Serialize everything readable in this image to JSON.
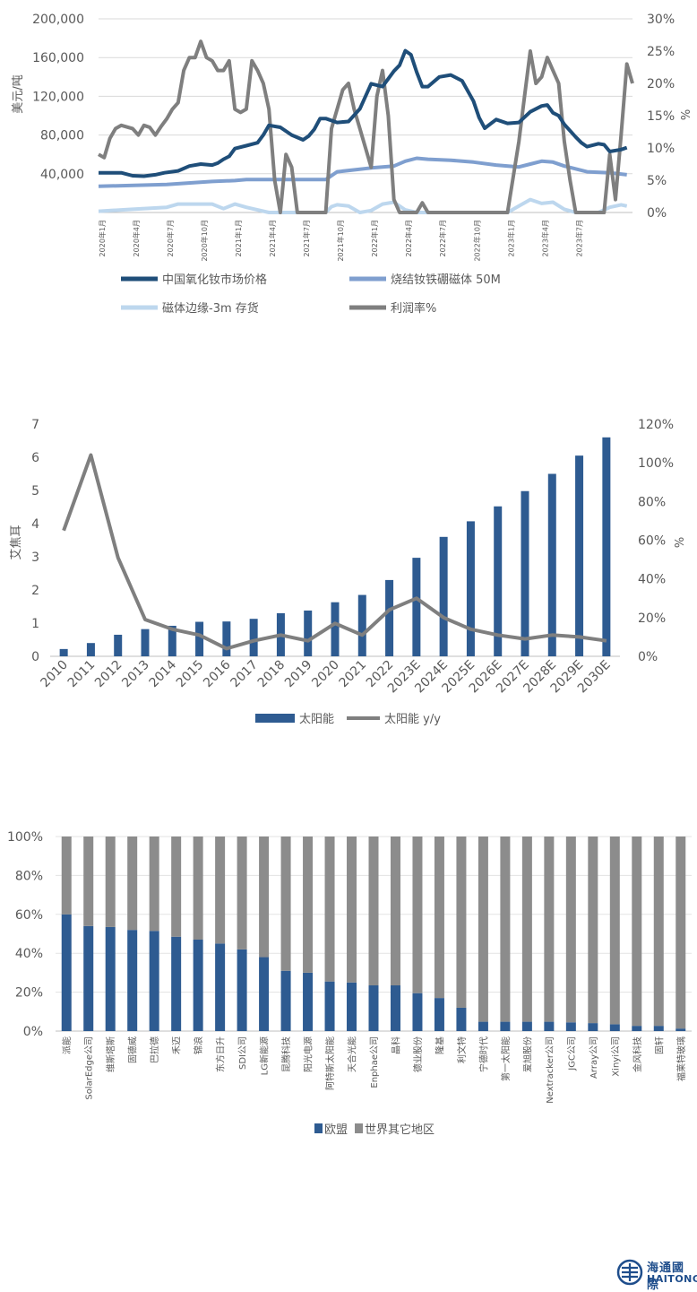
{
  "chart_data": [
    {
      "type": "line",
      "title": "",
      "ylabel": "美元/吨",
      "y2label": "%",
      "ylim": [
        0,
        200000
      ],
      "y2lim": [
        0,
        30
      ],
      "yticks": [
        "40,000",
        "80,000",
        "120,000",
        "160,000",
        "200,000"
      ],
      "y2ticks": [
        "0%",
        "5%",
        "10%",
        "15%",
        "20%",
        "25%",
        "30%"
      ],
      "xticks": [
        "2020年1月",
        "2020年4月",
        "2020年7月",
        "2020年10月",
        "2021年1月",
        "2021年4月",
        "2021年7月",
        "2021年10月",
        "2022年1月",
        "2022年4月",
        "2022年7月",
        "2022年10月",
        "2023年1月",
        "2023年4月",
        "2023年7月"
      ],
      "legend_position": "bottom",
      "colors": {
        "ndox": "#1f4e79",
        "magnet": "#7f9fcf",
        "edge": "#bdd7ee",
        "margin": "#7f7f7f"
      },
      "series": [
        {
          "name": "中国氧化钕市场价格",
          "axis": "left",
          "values": [
            [
              0,
              41000
            ],
            [
              2,
              41000
            ],
            [
              3,
              38000
            ],
            [
              4,
              37500
            ],
            [
              5,
              39000
            ],
            [
              5.8,
              41000
            ],
            [
              7,
              43000
            ],
            [
              8,
              48000
            ],
            [
              9,
              50000
            ],
            [
              10,
              49000
            ],
            [
              10.5,
              51000
            ],
            [
              11,
              55000
            ],
            [
              11.5,
              58000
            ],
            [
              12,
              66000
            ],
            [
              13,
              69000
            ],
            [
              14,
              72000
            ],
            [
              14.5,
              80000
            ],
            [
              15,
              90000
            ],
            [
              16,
              88000
            ],
            [
              17,
              80000
            ],
            [
              18,
              75000
            ],
            [
              18.5,
              79000
            ],
            [
              19,
              86000
            ],
            [
              19.5,
              97000
            ],
            [
              20,
              97000
            ],
            [
              21,
              93000
            ],
            [
              22,
              94000
            ],
            [
              23,
              107000
            ],
            [
              23.5,
              120000
            ],
            [
              24,
              133000
            ],
            [
              25,
              130000
            ],
            [
              26,
              146000
            ],
            [
              26.5,
              152000
            ],
            [
              27,
              167000
            ],
            [
              27.5,
              163000
            ],
            [
              28,
              145000
            ],
            [
              28.5,
              130000
            ],
            [
              29,
              130000
            ],
            [
              30,
              140000
            ],
            [
              31,
              142000
            ],
            [
              32,
              136000
            ],
            [
              33,
              115000
            ],
            [
              33.5,
              98000
            ],
            [
              34,
              87000
            ],
            [
              35,
              96000
            ],
            [
              36,
              92000
            ],
            [
              37,
              93000
            ],
            [
              38,
              104000
            ],
            [
              39,
              110000
            ],
            [
              39.5,
              111000
            ],
            [
              40,
              103000
            ],
            [
              40.5,
              100000
            ],
            [
              41,
              91000
            ],
            [
              42,
              78000
            ],
            [
              42.5,
              72000
            ],
            [
              43,
              68000
            ],
            [
              44,
              71000
            ],
            [
              44.5,
              70000
            ],
            [
              45,
              63000
            ],
            [
              46,
              65000
            ],
            [
              46.5,
              67000
            ]
          ]
        },
        {
          "name": "烧结钕铁硼磁体 50M",
          "axis": "left",
          "values": [
            [
              0,
              27000
            ],
            [
              6,
              29000
            ],
            [
              10,
              32000
            ],
            [
              12,
              33000
            ],
            [
              13,
              34000
            ],
            [
              20,
              34000
            ],
            [
              21,
              42000
            ],
            [
              24,
              46000
            ],
            [
              26,
              48000
            ],
            [
              27,
              53000
            ],
            [
              28,
              56000
            ],
            [
              29,
              55000
            ],
            [
              31,
              54000
            ],
            [
              33,
              52000
            ],
            [
              35,
              49000
            ],
            [
              37,
              47000
            ],
            [
              38,
              50000
            ],
            [
              39,
              53000
            ],
            [
              40,
              52000
            ],
            [
              41,
              48000
            ],
            [
              43,
              42000
            ],
            [
              45,
              41000
            ],
            [
              46.5,
              39000
            ]
          ]
        },
        {
          "name": "磁体边缘-3m 存货",
          "axis": "right",
          "values": [
            [
              0,
              0.2
            ],
            [
              3,
              0.5
            ],
            [
              6,
              0.8
            ],
            [
              7,
              1.3
            ],
            [
              10,
              1.3
            ],
            [
              11,
              0.6
            ],
            [
              12,
              1.3
            ],
            [
              13,
              0.8
            ],
            [
              14,
              0.4
            ],
            [
              15,
              0
            ],
            [
              20,
              0
            ],
            [
              20.5,
              0.9
            ],
            [
              21,
              1.2
            ],
            [
              22,
              1.0
            ],
            [
              23,
              0
            ],
            [
              24,
              0.3
            ],
            [
              25,
              1.3
            ],
            [
              26,
              1.6
            ],
            [
              27,
              0.4
            ],
            [
              28,
              0
            ],
            [
              30,
              0
            ],
            [
              36,
              0
            ],
            [
              37,
              1.0
            ],
            [
              38,
              2.0
            ],
            [
              39,
              1.4
            ],
            [
              40,
              1.6
            ],
            [
              41,
              0.5
            ],
            [
              42,
              0
            ],
            [
              44,
              0
            ],
            [
              45,
              0.8
            ],
            [
              46,
              1.2
            ],
            [
              46.5,
              1.0
            ]
          ]
        },
        {
          "name": "利润率%",
          "axis": "right",
          "values": [
            [
              0,
              9.0
            ],
            [
              0.5,
              8.5
            ],
            [
              1,
              11.5
            ],
            [
              1.5,
              13
            ],
            [
              2,
              13.5
            ],
            [
              3,
              13
            ],
            [
              3.5,
              12
            ],
            [
              4,
              13.5
            ],
            [
              4.5,
              13.2
            ],
            [
              5,
              12
            ],
            [
              5.5,
              13.3
            ],
            [
              6,
              14.5
            ],
            [
              6.5,
              16
            ],
            [
              7,
              17
            ],
            [
              7.5,
              22
            ],
            [
              8,
              24
            ],
            [
              8.5,
              24
            ],
            [
              9,
              26.5
            ],
            [
              9.5,
              24
            ],
            [
              10,
              23.5
            ],
            [
              10.5,
              22
            ],
            [
              11,
              22
            ],
            [
              11.5,
              23.5
            ],
            [
              12,
              16
            ],
            [
              12.5,
              15.5
            ],
            [
              13,
              16
            ],
            [
              13.5,
              23.5
            ],
            [
              14,
              22
            ],
            [
              14.5,
              20
            ],
            [
              15,
              16
            ],
            [
              15.5,
              5
            ],
            [
              16,
              0
            ],
            [
              16.5,
              9
            ],
            [
              17,
              7
            ],
            [
              17.5,
              0
            ],
            [
              20,
              0
            ],
            [
              20.5,
              13
            ],
            [
              21,
              16
            ],
            [
              21.5,
              19
            ],
            [
              22,
              20
            ],
            [
              22.5,
              16
            ],
            [
              23,
              13
            ],
            [
              24,
              7
            ],
            [
              24.5,
              18
            ],
            [
              25,
              22
            ],
            [
              25.5,
              15
            ],
            [
              26,
              2
            ],
            [
              26.5,
              0
            ],
            [
              28,
              0
            ],
            [
              28.5,
              1.5
            ],
            [
              29,
              0
            ],
            [
              36,
              0
            ],
            [
              37,
              11
            ],
            [
              37.5,
              18
            ],
            [
              38,
              25
            ],
            [
              38.5,
              20
            ],
            [
              39,
              21
            ],
            [
              39.5,
              24
            ],
            [
              40,
              22
            ],
            [
              40.5,
              20
            ],
            [
              41,
              11
            ],
            [
              41.5,
              5
            ],
            [
              42,
              0
            ],
            [
              44,
              0
            ],
            [
              44.5,
              0
            ],
            [
              45,
              9
            ],
            [
              45.5,
              2
            ],
            [
              46,
              12
            ],
            [
              46.5,
              23
            ],
            [
              47,
              20
            ]
          ]
        }
      ]
    },
    {
      "type": "bar",
      "title": "",
      "ylabel": "艾焦耳",
      "y2label": "%",
      "ylim": [
        0,
        7
      ],
      "y2lim": [
        0,
        120
      ],
      "yticks": [
        "0",
        "1",
        "2",
        "3",
        "4",
        "5",
        "6",
        "7"
      ],
      "y2ticks": [
        "0%",
        "20%",
        "40%",
        "60%",
        "80%",
        "100%",
        "120%"
      ],
      "categories": [
        "2010",
        "2011",
        "2012",
        "2013",
        "2014",
        "2015",
        "2016",
        "2017",
        "2018",
        "2019",
        "2020",
        "2021",
        "2022",
        "2023E",
        "2024E",
        "2025E",
        "2026E",
        "2027E",
        "2028E",
        "2029E",
        "2030E"
      ],
      "legend_position": "bottom",
      "colors": {
        "bar": "#2e5b91",
        "line": "#7f7f7f"
      },
      "series": [
        {
          "name": "太阳能",
          "axis": "left",
          "values": [
            0.22,
            0.4,
            0.65,
            0.82,
            0.92,
            1.04,
            1.05,
            1.13,
            1.3,
            1.38,
            1.63,
            1.85,
            2.3,
            2.97,
            3.6,
            4.07,
            4.52,
            4.98,
            5.5,
            6.05,
            6.6
          ]
        },
        {
          "name": "太阳能 y/y",
          "axis": "right",
          "values": [
            65,
            104,
            51,
            19,
            14,
            11,
            4,
            8,
            11,
            8,
            17,
            11,
            24,
            30,
            20,
            14,
            11,
            9,
            11,
            10,
            8
          ]
        }
      ]
    },
    {
      "type": "bar",
      "stacked": true,
      "title": "",
      "ylim": [
        0,
        100
      ],
      "yticks": [
        "0%",
        "20%",
        "40%",
        "60%",
        "80%",
        "100%"
      ],
      "categories": [
        "派能",
        "SolarEdge公司",
        "维斯塔斯",
        "固德威",
        "巴拉德",
        "禾迈",
        "锦浪",
        "东方日升",
        "SDI公司",
        "LG新能源",
        "昆腾科技",
        "阳光电源",
        "阿特斯太阳能",
        "天合光能",
        "Enphae公司",
        "晶科",
        "德业股份",
        "隆基",
        "利文特",
        "宁德时代",
        "第一太阳能",
        "爱旭股份",
        "Nextracker公司",
        "JGC公司",
        "Array公司",
        "Xinyi公司",
        "金风科技",
        "固轩",
        "福莱特玻璃"
      ],
      "legend_position": "bottom",
      "colors": {
        "eu": "#2e5b91",
        "rest": "#8c8c8c"
      },
      "series": [
        {
          "name": "欧盟",
          "values": [
            60,
            54,
            53.5,
            52,
            51.5,
            48.5,
            47,
            45,
            42,
            38,
            31,
            30,
            25.5,
            25,
            23.5,
            23.5,
            19.5,
            17,
            12,
            4.8,
            4.8,
            4.8,
            4.8,
            4.5,
            4.1,
            3.5,
            2.7,
            2.7,
            1.3
          ]
        },
        {
          "name": "世界其它地区",
          "values": [
            40,
            46,
            46.5,
            48,
            48.5,
            51.5,
            53,
            55,
            58,
            62,
            69,
            70,
            74.5,
            75,
            76.5,
            76.5,
            80.5,
            83,
            88,
            95.2,
            95.2,
            95.2,
            95.2,
            95.5,
            95.9,
            96.5,
            97.3,
            97.3,
            98.7
          ]
        }
      ]
    }
  ],
  "brand": {
    "cn": "海通國際",
    "en": "HAITONG"
  }
}
